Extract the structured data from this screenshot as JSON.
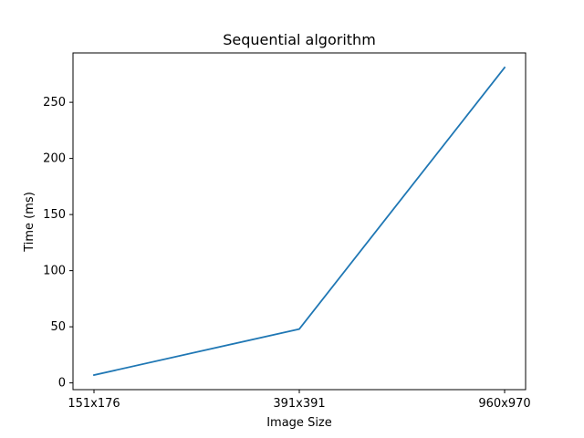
{
  "chart_data": {
    "type": "line",
    "title": "Sequential algorithm",
    "xlabel": "Image Size",
    "ylabel": "Time (ms)",
    "categories": [
      "151x176",
      "391x391",
      "960x970"
    ],
    "series": [
      {
        "color": "#1f77b4",
        "values": [
          7,
          48,
          281
        ]
      }
    ],
    "ylim": [
      -6,
      294
    ],
    "yticks": [
      0,
      50,
      100,
      150,
      200,
      250
    ],
    "grid": false,
    "legend": "none"
  }
}
